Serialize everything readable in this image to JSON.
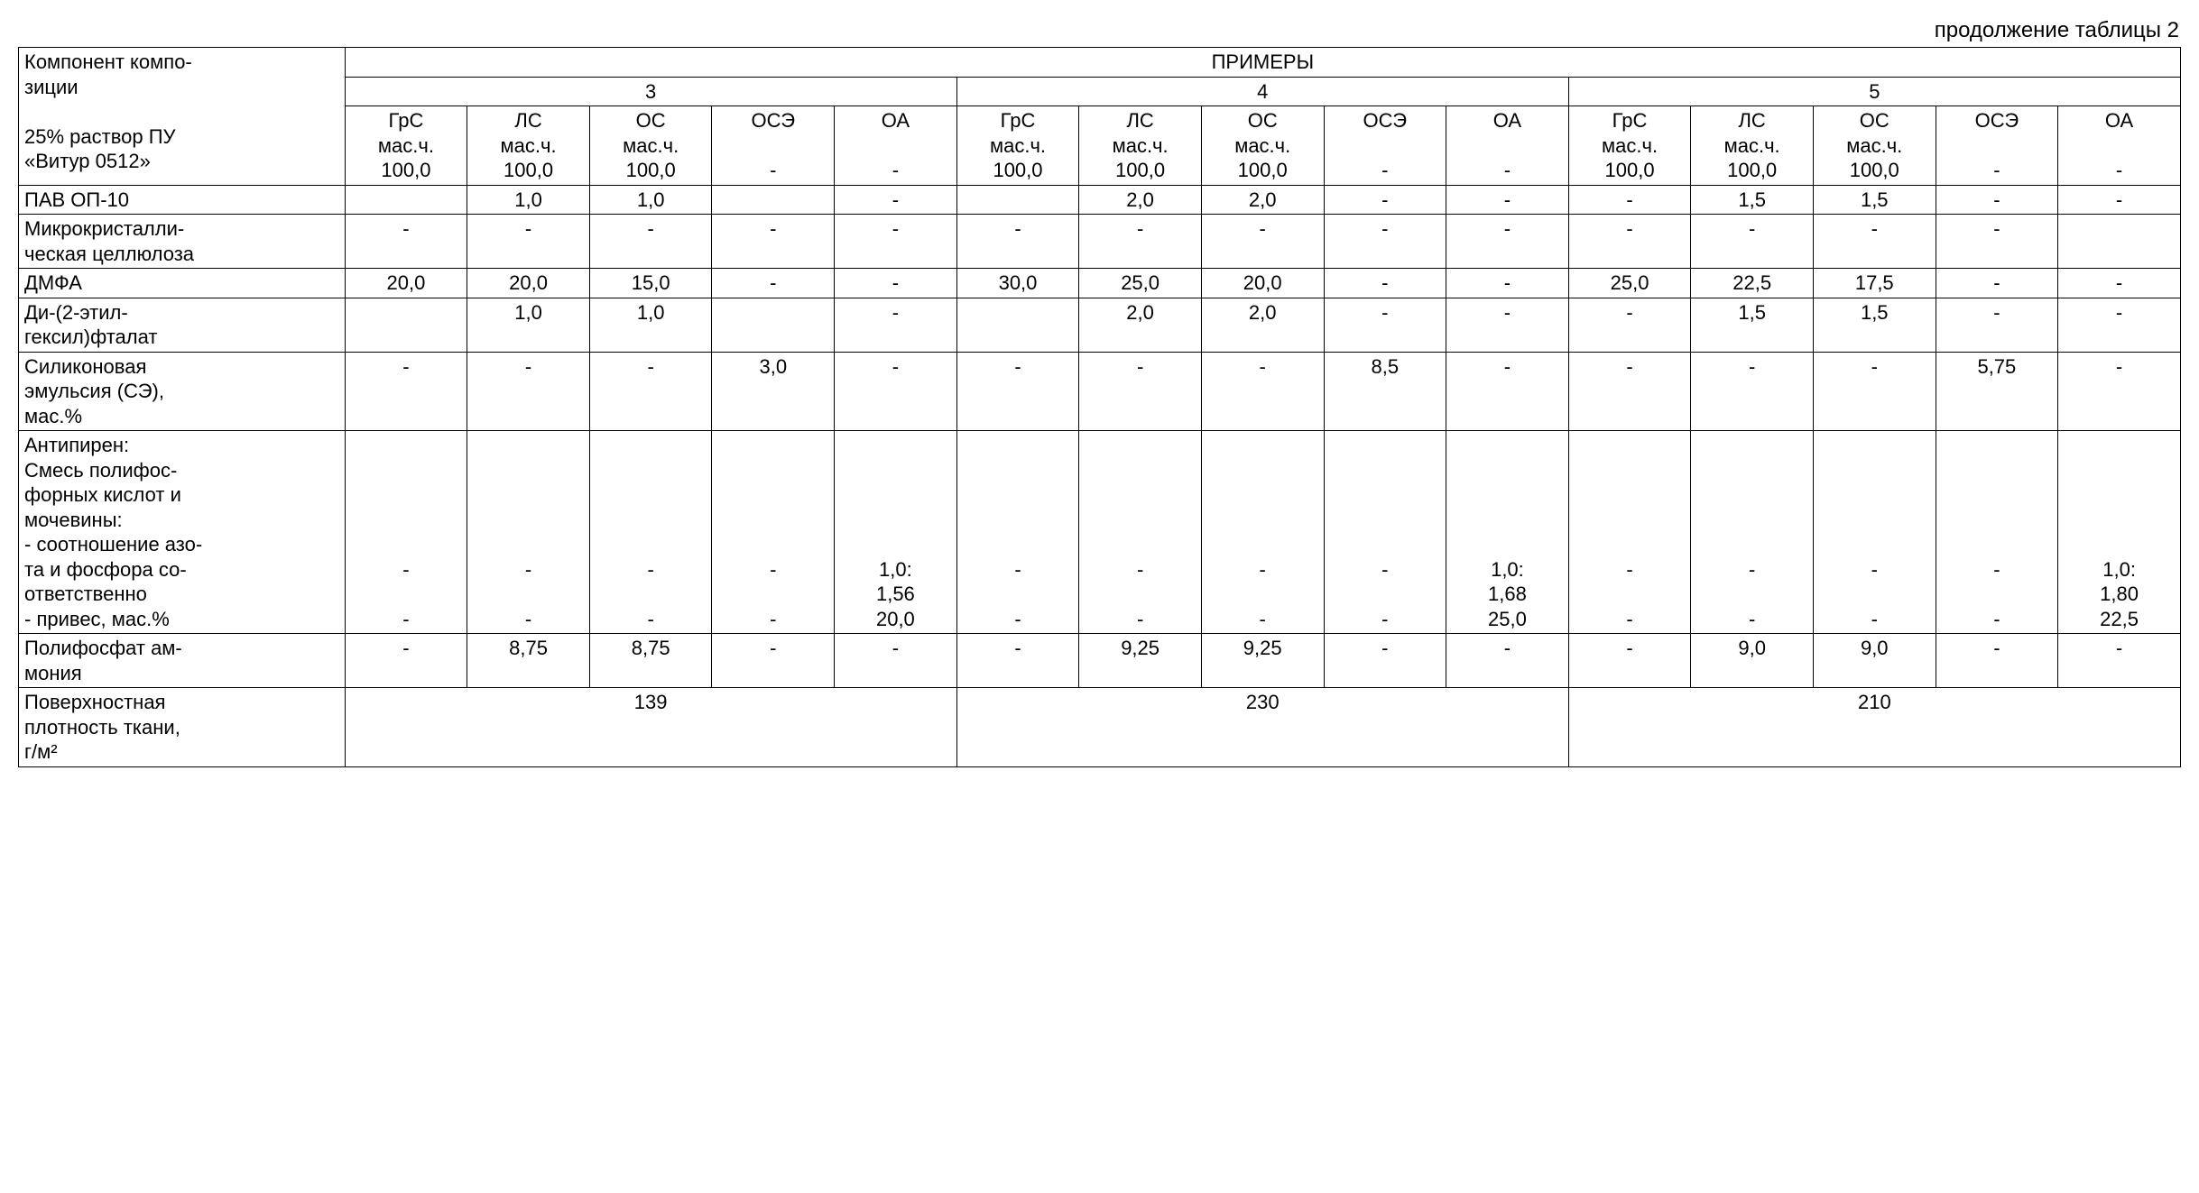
{
  "caption": "продолжение таблицы 2",
  "header": {
    "rowlabel_lines": [
      "Компонент компо-",
      "зиции",
      "",
      "25% раствор ПУ",
      "«Витур 0512»"
    ],
    "examples_title": "ПРИМЕРЫ",
    "groups": [
      "3",
      "4",
      "5"
    ],
    "subcols_labels": {
      "grc": "ГрС",
      "ls": "ЛС",
      "os": "ОС",
      "ose": "ОСЭ",
      "oa": "ОА"
    },
    "unit_line": "мас.ч.",
    "hundred": "100,0",
    "dash": "-"
  },
  "rows": [
    {
      "label": "ПАВ ОП-10",
      "cells": [
        "",
        "1,0",
        "1,0",
        "",
        "-",
        "",
        "2,0",
        "2,0",
        "-",
        "-",
        "-",
        "1,5",
        "1,5",
        "-",
        "-"
      ]
    },
    {
      "label": "Микрокристалли-\nческая целлюлоза",
      "cells": [
        "-",
        "-",
        "-",
        "-",
        "-",
        "-",
        "-",
        "-",
        "-",
        "-",
        "-",
        "-",
        "-",
        "-",
        ""
      ]
    },
    {
      "label": "ДМФА",
      "cells": [
        "20,0",
        "20,0",
        "15,0",
        "-",
        "-",
        "30,0",
        "25,0",
        "20,0",
        "-",
        "-",
        "25,0",
        "22,5",
        "17,5",
        "-",
        "-"
      ]
    },
    {
      "label": "Ди-(2-этил-\nгексил)фталат",
      "cells": [
        "",
        "1,0",
        "1,0",
        "",
        "-",
        "",
        "2,0",
        "2,0",
        "-",
        "-",
        "-",
        "1,5",
        "1,5",
        "-",
        "-"
      ]
    },
    {
      "label": "Силиконовая\nэмульсия (СЭ),\nмас.%",
      "cells": [
        "-",
        "-",
        "-",
        "3,0",
        "-",
        "-",
        "-",
        "-",
        "8,5",
        "-",
        "-",
        "-",
        "-",
        "5,75",
        "-"
      ]
    },
    {
      "label": "Антипирен:\nСмесь полифос-\nфорных кислот и\nмочевины:\n- соотношение азо-\nта и фосфора со-\nответственно\n- привес, мас.%",
      "cells": [
        "\n\n\n\n\n-\n\n-",
        "\n\n\n\n\n-\n\n-",
        "\n\n\n\n\n-\n\n-",
        "\n\n\n\n\n-\n\n-",
        "\n\n\n\n\n1,0:\n1,56\n20,0",
        "\n\n\n\n\n-\n\n-",
        "\n\n\n\n\n-\n\n-",
        "\n\n\n\n\n-\n\n-",
        "\n\n\n\n\n-\n\n-",
        "\n\n\n\n\n1,0:\n1,68\n25,0",
        "\n\n\n\n\n-\n\n-",
        "\n\n\n\n\n-\n\n-",
        "\n\n\n\n\n-\n\n-",
        "\n\n\n\n\n-\n\n-",
        "\n\n\n\n\n1,0:\n1,80\n22,5"
      ]
    },
    {
      "label": "Полифосфат ам-\nмония",
      "cells": [
        "-",
        "8,75",
        "8,75",
        "-",
        "-",
        "-",
        "9,25",
        "9,25",
        "-",
        "-",
        "-",
        "9,0",
        "9,0",
        "-",
        "-"
      ]
    }
  ],
  "footer": {
    "label": "Поверхностная\nплотность ткани,\nг/м²",
    "values": [
      "139",
      "230",
      "210"
    ]
  }
}
